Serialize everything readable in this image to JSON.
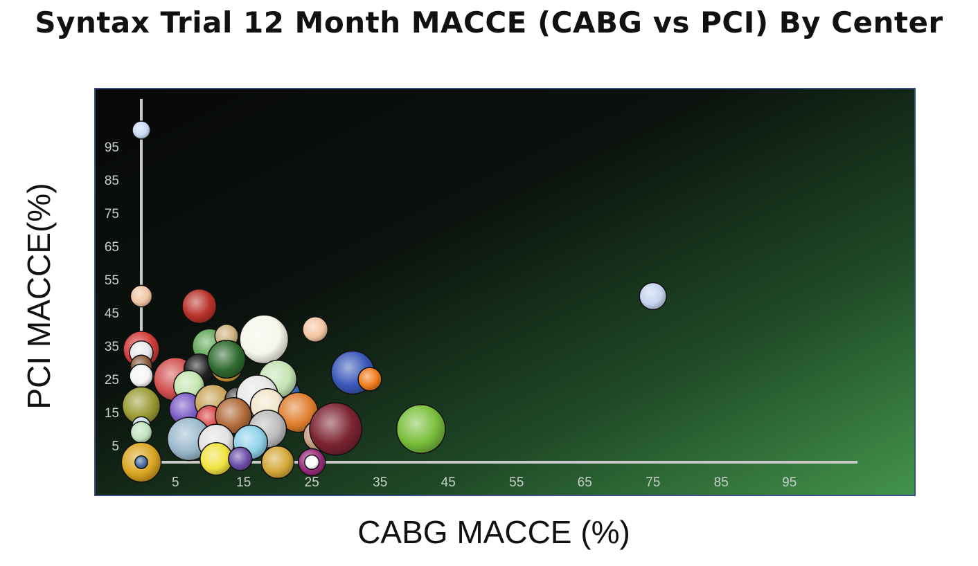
{
  "chart_data": {
    "type": "scatter",
    "title": "Syntax Trial 12 Month MACCE (CABG vs PCI) By Center",
    "xlabel": "CABG MACCE (%)",
    "ylabel": "PCI MACCE(%)",
    "xlim": [
      -2,
      108
    ],
    "ylim": [
      -3,
      106
    ],
    "grid": false,
    "x_ticks": [
      5,
      15,
      25,
      35,
      45,
      55,
      65,
      75,
      85,
      95
    ],
    "y_ticks": [
      5,
      15,
      25,
      35,
      45,
      55,
      65,
      75,
      85,
      95
    ],
    "colors": {
      "plot_background_start": "#07090a",
      "plot_background_end": "#3f8c45",
      "axis_line": "#c9c9c9",
      "border": "#3a4f86"
    },
    "points": [
      {
        "x": 0,
        "y": 100,
        "r": 1,
        "color": "#c9d8f2"
      },
      {
        "x": 0,
        "y": 50,
        "r": 1.2,
        "color": "#f0c4a2"
      },
      {
        "x": 0,
        "y": 34,
        "r": 2,
        "color": "#d23a3a"
      },
      {
        "x": 0,
        "y": 33,
        "r": 1.3,
        "color": "#e9e9e9"
      },
      {
        "x": 0,
        "y": 29,
        "r": 1.2,
        "color": "#8a5a3c"
      },
      {
        "x": 0,
        "y": 26,
        "r": 1.3,
        "color": "#f5f5f5"
      },
      {
        "x": 0,
        "y": 17,
        "r": 2.1,
        "color": "#9a9a34"
      },
      {
        "x": 0,
        "y": 11,
        "r": 1,
        "color": "#cfe3f5"
      },
      {
        "x": 0,
        "y": 9,
        "r": 1.2,
        "color": "#bfe3bd"
      },
      {
        "x": 0,
        "y": 0,
        "r": 2.2,
        "color": "#d9a521"
      },
      {
        "x": 0,
        "y": 0,
        "r": 0.7,
        "color": "#4a6fa5"
      },
      {
        "x": 8.5,
        "y": 47,
        "r": 1.9,
        "color": "#b8322a"
      },
      {
        "x": 10,
        "y": 35,
        "r": 1.9,
        "color": "#5fa857"
      },
      {
        "x": 12.5,
        "y": 38,
        "r": 1.3,
        "color": "#cdb27c"
      },
      {
        "x": 18,
        "y": 37,
        "r": 2.7,
        "color": "#f6f6ea"
      },
      {
        "x": 25.5,
        "y": 40,
        "r": 1.4,
        "color": "#f3c6a3"
      },
      {
        "x": 5,
        "y": 25,
        "r": 2.4,
        "color": "#d34f4f"
      },
      {
        "x": 8.5,
        "y": 28,
        "r": 1.7,
        "color": "#1f1f1f"
      },
      {
        "x": 12.5,
        "y": 29,
        "r": 1.8,
        "color": "#d8a23a"
      },
      {
        "x": 12.5,
        "y": 31,
        "r": 2.1,
        "color": "#2f6a2f"
      },
      {
        "x": 7,
        "y": 23,
        "r": 1.7,
        "color": "#c5e6b0"
      },
      {
        "x": 6.5,
        "y": 16,
        "r": 1.8,
        "color": "#7b5cc7"
      },
      {
        "x": 10.5,
        "y": 18,
        "r": 2,
        "color": "#c8a55a"
      },
      {
        "x": 14,
        "y": 19,
        "r": 1.3,
        "color": "#505050"
      },
      {
        "x": 21,
        "y": 20,
        "r": 1.8,
        "color": "#3f6cc4"
      },
      {
        "x": 20,
        "y": 25,
        "r": 2.1,
        "color": "#c3e3b3"
      },
      {
        "x": 17,
        "y": 20,
        "r": 2.3,
        "color": "#e7e7e7"
      },
      {
        "x": 18.5,
        "y": 17,
        "r": 1.9,
        "color": "#f2e6cc"
      },
      {
        "x": 23,
        "y": 15,
        "r": 2.2,
        "color": "#e07f2f"
      },
      {
        "x": 10,
        "y": 13,
        "r": 1.5,
        "color": "#d74343"
      },
      {
        "x": 13.5,
        "y": 14,
        "r": 2,
        "color": "#b06a38"
      },
      {
        "x": 18.5,
        "y": 10,
        "r": 2.1,
        "color": "#bcbcbc"
      },
      {
        "x": 7,
        "y": 7,
        "r": 2.4,
        "color": "#9bb9cc"
      },
      {
        "x": 11,
        "y": 6,
        "r": 2,
        "color": "#e2e2e2"
      },
      {
        "x": 16,
        "y": 6,
        "r": 1.9,
        "color": "#8fd1ea"
      },
      {
        "x": 26,
        "y": 8,
        "r": 1.7,
        "color": "#c79e80"
      },
      {
        "x": 28.5,
        "y": 10,
        "r": 2.9,
        "color": "#7b2431"
      },
      {
        "x": 31,
        "y": 27,
        "r": 2.4,
        "color": "#3a58b9"
      },
      {
        "x": 33.5,
        "y": 25,
        "r": 1.3,
        "color": "#f07a1b"
      },
      {
        "x": 41,
        "y": 10,
        "r": 2.7,
        "color": "#7abf3b"
      },
      {
        "x": 75,
        "y": 50,
        "r": 1.5,
        "color": "#c4d3ee"
      },
      {
        "x": 11,
        "y": 1,
        "r": 1.8,
        "color": "#f1e23f"
      },
      {
        "x": 14.5,
        "y": 1,
        "r": 1.3,
        "color": "#6b4fa8"
      },
      {
        "x": 20,
        "y": 0,
        "r": 1.8,
        "color": "#d4a83a"
      },
      {
        "x": 25,
        "y": 0,
        "r": 1.5,
        "color": "#9a2d7e"
      },
      {
        "x": 25,
        "y": 0,
        "r": 0.8,
        "color": "#ffffff"
      }
    ]
  }
}
